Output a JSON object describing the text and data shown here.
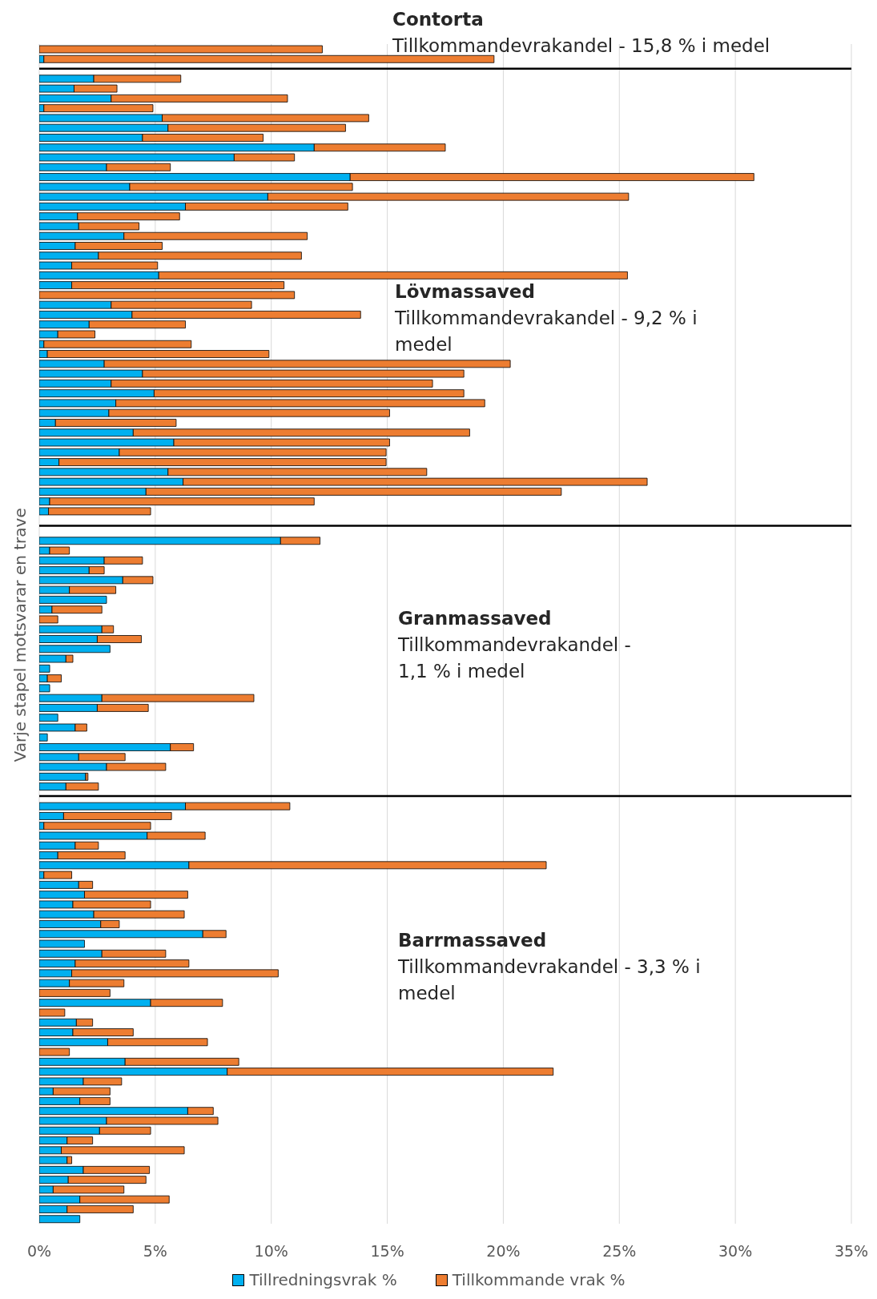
{
  "chart_data": {
    "type": "bar",
    "orientation": "horizontal",
    "stacked": true,
    "ylabel": "Varje stapel motsvarar en trave",
    "annotations": [
      "Contorta",
      "Tillkommandevrakandel - 15,8 % i medel",
      "Lövmassaved",
      "Tillkommandevrakandel - 9,2 % i medel",
      "Granmassaved",
      "Tillkommandevrakandel - 1,1 % i medel",
      "Barrmassaved",
      "Tillkommandevrakandel - 3,3 % i medel"
    ],
    "categories": [
      null,
      null,
      null,
      null,
      null,
      null,
      null,
      null,
      null,
      null,
      null,
      null,
      null,
      null,
      null,
      null,
      null,
      null,
      null,
      null,
      null,
      null,
      null,
      null,
      null,
      null,
      null,
      null,
      null,
      null,
      null,
      null,
      null,
      null,
      null,
      null,
      null,
      null,
      null,
      null,
      null,
      null,
      null,
      null,
      null,
      null,
      null,
      null,
      null,
      null,
      null,
      null,
      null,
      null,
      null,
      null,
      null,
      null,
      null,
      null,
      null,
      null,
      null,
      null,
      null,
      null,
      null,
      null,
      null,
      null,
      null,
      null,
      null,
      null,
      null,
      null,
      null,
      null,
      null,
      null,
      null,
      null,
      null,
      null,
      null,
      null,
      null,
      null,
      null,
      null,
      null,
      null,
      null,
      null,
      null,
      null,
      null,
      null,
      null,
      null,
      null,
      null,
      null,
      null,
      null,
      null,
      null,
      null,
      null,
      null,
      null,
      null,
      null,
      null,
      null,
      null,
      null,
      null,
      null,
      null
    ],
    "series": [
      {
        "name": "Tillredningsvrak %",
        "color": "#00b0f0",
        "values": [
          0,
          0.2,
          null,
          2.35,
          1.5,
          3.1,
          0.2,
          5.3,
          5.55,
          4.45,
          11.85,
          8.4,
          2.9,
          13.4,
          3.9,
          9.85,
          6.3,
          1.65,
          1.7,
          3.65,
          1.55,
          2.55,
          1.4,
          5.15,
          1.4,
          0,
          3.1,
          4.0,
          2.15,
          0.8,
          0.2,
          0.35,
          2.8,
          4.45,
          3.1,
          4.95,
          3.3,
          3.0,
          0.7,
          4.05,
          5.8,
          3.45,
          0.85,
          5.55,
          6.2,
          4.6,
          0.45,
          0.4,
          null,
          null,
          10.4,
          0.45,
          2.8,
          2.15,
          3.6,
          1.3,
          2.9,
          0.55,
          0,
          2.7,
          2.5,
          3.05,
          1.15,
          0.45,
          0.35,
          0.45,
          2.7,
          2.5,
          0.8,
          1.55,
          0.35,
          5.65,
          1.7,
          2.9,
          2.0,
          1.15,
          null,
          6.3,
          1.05,
          0.2,
          4.65,
          1.55,
          0.8,
          6.45,
          0.2,
          1.7,
          1.95,
          1.45,
          2.35,
          2.65,
          7.05,
          1.95,
          2.7,
          1.55,
          1.4,
          1.3,
          0,
          4.8,
          0,
          1.6,
          1.45,
          2.95,
          0,
          3.7,
          8.1,
          1.9,
          0.6,
          1.75,
          6.4,
          2.9,
          2.6,
          1.2,
          0.95,
          1.2,
          1.9,
          1.25,
          0.6,
          1.75,
          1.2,
          1.75
        ]
      },
      {
        "name": "Tillkommande vrak %",
        "color": "#ed7d31",
        "values": [
          12.2,
          19.4,
          null,
          3.75,
          1.85,
          7.6,
          4.7,
          8.9,
          7.65,
          5.2,
          5.65,
          2.6,
          2.75,
          17.4,
          9.6,
          15.55,
          7.0,
          4.4,
          2.6,
          7.9,
          3.75,
          8.75,
          3.7,
          20.2,
          9.15,
          11.0,
          6.05,
          9.85,
          4.15,
          1.6,
          6.35,
          9.55,
          17.5,
          13.85,
          13.85,
          13.35,
          15.9,
          12.1,
          5.2,
          14.5,
          9.3,
          11.5,
          14.1,
          11.15,
          20.0,
          17.9,
          11.4,
          4.4,
          null,
          null,
          1.7,
          0.85,
          1.65,
          0.65,
          1.3,
          2.0,
          0,
          2.15,
          0.8,
          0.5,
          1.9,
          0,
          0.3,
          0,
          0.6,
          0,
          6.55,
          2.2,
          0,
          0.5,
          0,
          1.0,
          2.0,
          2.55,
          0.1,
          1.4,
          null,
          4.5,
          4.65,
          4.6,
          2.5,
          1.0,
          2.9,
          15.4,
          1.2,
          0.6,
          4.45,
          3.35,
          3.9,
          0.8,
          1.0,
          0,
          2.75,
          4.9,
          8.9,
          2.35,
          3.05,
          3.1,
          1.1,
          0.7,
          2.6,
          4.3,
          1.3,
          4.9,
          14.05,
          1.65,
          2.45,
          1.3,
          1.1,
          4.8,
          2.2,
          1.1,
          5.3,
          0.2,
          2.85,
          3.35,
          3.05,
          3.85,
          2.85,
          0
        ]
      }
    ],
    "xlim": [
      0,
      35
    ],
    "xticks": [
      {
        "value": 0,
        "label": "0%"
      },
      {
        "value": 5,
        "label": "5%"
      },
      {
        "value": 10,
        "label": "10%"
      },
      {
        "value": 15,
        "label": "15%"
      },
      {
        "value": 20,
        "label": "20%"
      },
      {
        "value": 25,
        "label": "25%"
      },
      {
        "value": 30,
        "label": "30%"
      },
      {
        "value": 35,
        "label": "35%"
      }
    ],
    "grid": "x",
    "legend": "bottom",
    "tick_labels": "x"
  }
}
